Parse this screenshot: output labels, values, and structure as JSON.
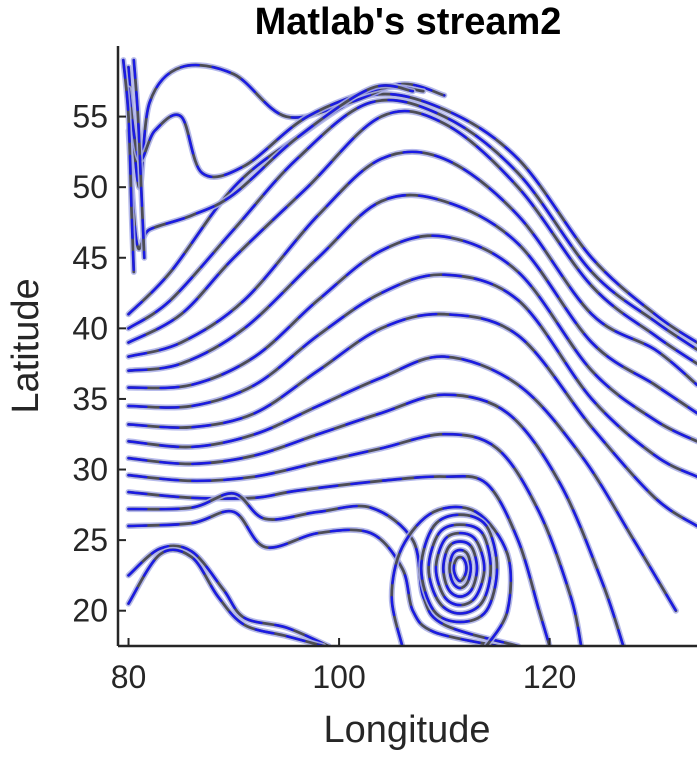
{
  "chart_data": {
    "type": "line",
    "title": "Matlab's stream2",
    "xlabel": "Longitude",
    "ylabel": "Latitude",
    "xlim": [
      79,
      134
    ],
    "ylim": [
      17.5,
      60
    ],
    "xticks": [
      80,
      100,
      120
    ],
    "yticks": [
      20,
      25,
      30,
      35,
      40,
      45,
      50,
      55
    ],
    "grid": false,
    "colors": {
      "stream_blue": "#1a1ae6",
      "stream_gray": "#4d4d55",
      "halo": "#a9aee8",
      "axis": "#262626"
    },
    "streamlines_description": "Streamlines of a wind vector field over a longitude-latitude grid",
    "series": [
      {
        "id": "s1",
        "values": [
          [
            80,
            41
          ],
          [
            84,
            44
          ],
          [
            90,
            50
          ],
          [
            96,
            53.5
          ],
          [
            103,
            56.5
          ],
          [
            110,
            55.5
          ],
          [
            117,
            52
          ],
          [
            124,
            45
          ],
          [
            130,
            41
          ],
          [
            134,
            39
          ]
        ]
      },
      {
        "id": "s2",
        "values": [
          [
            80,
            40
          ],
          [
            84,
            42
          ],
          [
            90,
            47
          ],
          [
            96,
            52
          ],
          [
            103,
            56
          ],
          [
            110,
            55
          ],
          [
            117,
            51
          ],
          [
            124,
            44
          ],
          [
            130,
            40.5
          ],
          [
            134,
            38.5
          ]
        ]
      },
      {
        "id": "s3",
        "values": [
          [
            80,
            39
          ],
          [
            85,
            41
          ],
          [
            90,
            45
          ],
          [
            97,
            50
          ],
          [
            104,
            55
          ],
          [
            110,
            54.5
          ],
          [
            117,
            50
          ],
          [
            124,
            43
          ],
          [
            130,
            39.5
          ],
          [
            134,
            37.5
          ]
        ]
      },
      {
        "id": "s4",
        "values": [
          [
            80,
            38
          ],
          [
            85,
            39
          ],
          [
            91,
            42
          ],
          [
            98,
            48
          ],
          [
            104,
            52
          ],
          [
            110,
            52
          ],
          [
            117,
            48
          ],
          [
            124,
            41
          ],
          [
            130,
            38.5
          ],
          [
            134,
            36
          ]
        ]
      },
      {
        "id": "s5",
        "values": [
          [
            80,
            37
          ],
          [
            85,
            37.5
          ],
          [
            91,
            40
          ],
          [
            98,
            45
          ],
          [
            104,
            49
          ],
          [
            110,
            49
          ],
          [
            117,
            46
          ],
          [
            124,
            39
          ],
          [
            130,
            36
          ],
          [
            134,
            34
          ]
        ]
      },
      {
        "id": "s6",
        "values": [
          [
            80,
            35.8
          ],
          [
            86,
            36
          ],
          [
            92,
            38
          ],
          [
            98,
            42
          ],
          [
            104,
            45.5
          ],
          [
            110,
            46.5
          ],
          [
            117,
            44
          ],
          [
            124,
            37
          ],
          [
            130,
            33.5
          ],
          [
            134,
            32
          ]
        ]
      },
      {
        "id": "s7",
        "values": [
          [
            80,
            34.5
          ],
          [
            86,
            34.5
          ],
          [
            92,
            36
          ],
          [
            98,
            39.5
          ],
          [
            104,
            42.5
          ],
          [
            110,
            43.8
          ],
          [
            117,
            42
          ],
          [
            124,
            35
          ],
          [
            130,
            31
          ],
          [
            134,
            29.5
          ]
        ]
      },
      {
        "id": "s8",
        "values": [
          [
            80,
            33.2
          ],
          [
            86,
            33
          ],
          [
            92,
            34
          ],
          [
            98,
            37
          ],
          [
            104,
            40
          ],
          [
            110,
            41
          ],
          [
            117,
            39.5
          ],
          [
            124,
            33
          ],
          [
            130,
            28
          ],
          [
            134,
            26
          ]
        ]
      },
      {
        "id": "s9",
        "values": [
          [
            80,
            32
          ],
          [
            86,
            31.6
          ],
          [
            92,
            32.5
          ],
          [
            98,
            34.5
          ],
          [
            104,
            36.5
          ],
          [
            110,
            38
          ],
          [
            117,
            36
          ],
          [
            123,
            31
          ],
          [
            128,
            25
          ],
          [
            132,
            20
          ]
        ]
      },
      {
        "id": "s10",
        "values": [
          [
            80,
            30.8
          ],
          [
            86,
            30.4
          ],
          [
            92,
            31
          ],
          [
            98,
            32.5
          ],
          [
            104,
            34
          ],
          [
            110,
            35.3
          ],
          [
            116,
            34
          ],
          [
            121,
            29
          ],
          [
            125,
            22
          ],
          [
            127,
            17.5
          ]
        ]
      },
      {
        "id": "s11",
        "values": [
          [
            80,
            29.6
          ],
          [
            86,
            29.2
          ],
          [
            92,
            29.5
          ],
          [
            98,
            30.5
          ],
          [
            104,
            31.5
          ],
          [
            110,
            32.5
          ],
          [
            115,
            31.5
          ],
          [
            119,
            27
          ],
          [
            122,
            21
          ],
          [
            123,
            17.5
          ]
        ]
      },
      {
        "id": "s12",
        "values": [
          [
            80,
            28.4
          ],
          [
            86,
            28
          ],
          [
            92,
            28
          ],
          [
            96,
            28.5
          ],
          [
            104,
            29.2
          ],
          [
            110,
            29.5
          ],
          [
            114,
            29
          ],
          [
            117,
            25
          ],
          [
            119,
            20
          ],
          [
            120,
            17.5
          ]
        ]
      },
      {
        "id": "s13",
        "values": [
          [
            80,
            27.2
          ],
          [
            86,
            27.3
          ],
          [
            90,
            28.3
          ],
          [
            93,
            26.5
          ],
          [
            98,
            27
          ],
          [
            103,
            27.3
          ],
          [
            107,
            25
          ],
          [
            108,
            21
          ],
          [
            110,
            19
          ],
          [
            117,
            17.5
          ]
        ]
      },
      {
        "id": "s14",
        "values": [
          [
            80,
            26
          ],
          [
            86,
            26.2
          ],
          [
            90,
            27
          ],
          [
            93,
            24.5
          ],
          [
            98,
            25.5
          ],
          [
            103,
            25.5
          ],
          [
            106,
            23
          ],
          [
            107,
            20
          ],
          [
            109,
            18.5
          ],
          [
            115,
            17.5
          ]
        ]
      },
      {
        "id": "s15",
        "values": [
          [
            80,
            22.5
          ],
          [
            83,
            24.4
          ],
          [
            86,
            24.2
          ],
          [
            89,
            21.5
          ],
          [
            91,
            19.5
          ],
          [
            95,
            18.8
          ],
          [
            99,
            17.5
          ]
        ]
      },
      {
        "id": "s16",
        "values": [
          [
            80,
            20.5
          ],
          [
            83,
            24
          ],
          [
            86,
            23.8
          ],
          [
            88.5,
            21
          ],
          [
            91,
            19
          ],
          [
            95,
            18.2
          ],
          [
            98.5,
            17.5
          ]
        ]
      },
      {
        "id": "s17",
        "values": [
          [
            80,
            58.5
          ],
          [
            81,
            50
          ],
          [
            82,
            56
          ],
          [
            85,
            58.5
          ],
          [
            90,
            58
          ],
          [
            95,
            55
          ],
          [
            101,
            56
          ],
          [
            106,
            57.3
          ],
          [
            110,
            56.5
          ]
        ]
      },
      {
        "id": "s18",
        "values": [
          [
            80,
            57
          ],
          [
            81,
            52
          ],
          [
            82.5,
            54
          ],
          [
            85,
            55
          ],
          [
            87,
            51
          ],
          [
            91,
            51.5
          ],
          [
            97,
            55
          ],
          [
            104,
            57
          ],
          [
            108,
            56.8
          ]
        ]
      },
      {
        "id": "s19",
        "values": [
          [
            80,
            54
          ],
          [
            80.8,
            46
          ],
          [
            82,
            47
          ],
          [
            86,
            48
          ],
          [
            90,
            49.5
          ],
          [
            96,
            53.5
          ],
          [
            103,
            57
          ],
          [
            107,
            56.8
          ]
        ]
      },
      {
        "id": "s20",
        "values": [
          [
            79.5,
            59
          ],
          [
            80,
            55
          ],
          [
            80.3,
            48
          ],
          [
            80.5,
            44
          ]
        ]
      },
      {
        "id": "s21",
        "values": [
          [
            80.5,
            59
          ],
          [
            80.9,
            55
          ],
          [
            81.2,
            50
          ],
          [
            81.5,
            45
          ]
        ]
      },
      {
        "id": "s22",
        "values": [
          [
            106,
            17.5
          ],
          [
            105,
            21
          ],
          [
            106,
            24.5
          ],
          [
            109,
            27
          ],
          [
            113,
            27
          ],
          [
            116,
            24
          ],
          [
            116,
            20
          ],
          [
            114,
            17.5
          ]
        ]
      },
      {
        "id": "v1",
        "closed": true,
        "values": [
          [
            111.5,
            19.2
          ],
          [
            109,
            20
          ],
          [
            107.8,
            23
          ],
          [
            109,
            26
          ],
          [
            111.5,
            26.8
          ],
          [
            114,
            26
          ],
          [
            115,
            23
          ],
          [
            114,
            20
          ]
        ]
      },
      {
        "id": "v2",
        "closed": true,
        "values": [
          [
            111.5,
            19.8
          ],
          [
            109.5,
            20.6
          ],
          [
            108.5,
            23
          ],
          [
            109.5,
            25.5
          ],
          [
            111.5,
            26.1
          ],
          [
            113.6,
            25.5
          ],
          [
            114.4,
            23
          ],
          [
            113.6,
            20.6
          ]
        ]
      },
      {
        "id": "v3",
        "closed": true,
        "values": [
          [
            111.5,
            20.4
          ],
          [
            110,
            21
          ],
          [
            109.2,
            23
          ],
          [
            110,
            25
          ],
          [
            111.5,
            25.5
          ],
          [
            113,
            25
          ],
          [
            113.8,
            23
          ],
          [
            113,
            21
          ]
        ]
      },
      {
        "id": "v4",
        "closed": true,
        "values": [
          [
            111.5,
            21
          ],
          [
            110.4,
            21.5
          ],
          [
            109.9,
            23
          ],
          [
            110.4,
            24.5
          ],
          [
            111.5,
            24.9
          ],
          [
            112.6,
            24.5
          ],
          [
            113.1,
            23
          ],
          [
            112.6,
            21.5
          ]
        ]
      },
      {
        "id": "v5",
        "closed": true,
        "values": [
          [
            111.5,
            21.6
          ],
          [
            110.8,
            22
          ],
          [
            110.5,
            23
          ],
          [
            110.8,
            24
          ],
          [
            111.5,
            24.3
          ],
          [
            112.2,
            24
          ],
          [
            112.5,
            23
          ],
          [
            112.2,
            22
          ]
        ]
      },
      {
        "id": "v6",
        "closed": true,
        "values": [
          [
            111.5,
            22.1
          ],
          [
            111.1,
            22.4
          ],
          [
            110.9,
            23
          ],
          [
            111.1,
            23.6
          ],
          [
            111.5,
            23.8
          ],
          [
            111.9,
            23.6
          ],
          [
            112.1,
            23
          ],
          [
            111.9,
            22.4
          ]
        ]
      }
    ]
  }
}
